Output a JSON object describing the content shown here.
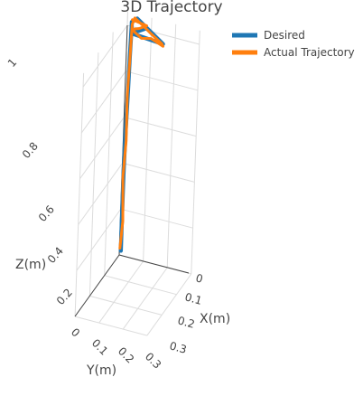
{
  "chart_data": {
    "type": "line",
    "title": "3D Trajectory",
    "axes": {
      "x": {
        "label": "X(m)",
        "ticks": [
          "0",
          "0.1",
          "0.2",
          "0.3"
        ],
        "range": [
          0,
          0.3
        ]
      },
      "y": {
        "label": "Y(m)",
        "ticks": [
          "0",
          "0.1",
          "0.2",
          "0.3"
        ],
        "range": [
          0,
          0.3
        ]
      },
      "z": {
        "label": "Z(m)",
        "ticks": [
          "0.2",
          "0.4",
          "0.6",
          "0.8",
          "1"
        ],
        "range": [
          0,
          1.06
        ]
      }
    },
    "grid": true,
    "legend_position": "top-right",
    "series": [
      {
        "name": "Desired",
        "color": "#1f77b4",
        "points": [
          [
            0.006,
            0.0,
            0.02
          ],
          [
            0.006,
            0.0,
            0.16
          ],
          [
            0.006,
            0.0,
            0.35
          ],
          [
            0.008,
            0.0,
            0.52
          ],
          [
            0.012,
            0.0,
            0.7
          ],
          [
            0.015,
            0.0,
            0.87
          ],
          [
            0.018,
            0.0,
            1.0
          ],
          [
            0.018,
            0.0,
            1.02
          ],
          [
            0.04,
            0.0,
            1.04
          ],
          [
            0.15,
            0.0,
            0.96
          ],
          [
            0.02,
            0.0,
            0.97
          ],
          [
            0.05,
            0.0,
            0.99
          ],
          [
            0.08,
            0.0,
            1.01
          ],
          [
            0.15,
            0.0,
            0.96
          ]
        ]
      },
      {
        "name": "Actual Trajectory",
        "color": "#ff7f0e",
        "points": [
          [
            0.002,
            0.0,
            0.03
          ],
          [
            0.01,
            0.0,
            0.15
          ],
          [
            0.004,
            0.0,
            0.34
          ],
          [
            0.012,
            0.0,
            0.5
          ],
          [
            0.01,
            0.0,
            0.7
          ],
          [
            0.016,
            0.0,
            0.87
          ],
          [
            0.02,
            0.0,
            1.01
          ],
          [
            0.03,
            0.0,
            1.04
          ],
          [
            0.06,
            0.0,
            1.02
          ],
          [
            0.1,
            0.0,
            0.99
          ],
          [
            0.145,
            0.0,
            0.96
          ],
          [
            0.15,
            0.0,
            0.95
          ],
          [
            0.1,
            0.0,
            0.97
          ],
          [
            0.06,
            0.0,
            0.96
          ],
          [
            0.03,
            0.0,
            0.98
          ],
          [
            0.025,
            0.0,
            0.99
          ],
          [
            0.05,
            0.0,
            1.0
          ],
          [
            0.08,
            0.0,
            1.02
          ],
          [
            0.02,
            0.0,
            1.03
          ]
        ]
      }
    ]
  }
}
